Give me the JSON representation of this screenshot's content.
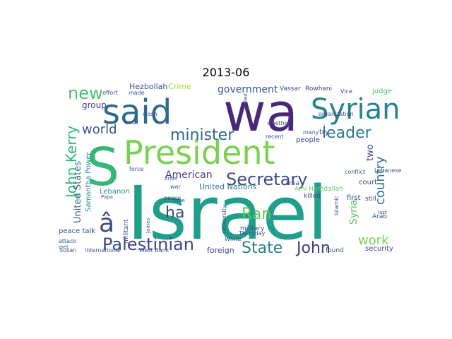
{
  "title": "2013-06",
  "words": [
    {
      "text": "Israel",
      "color": "#1f9e89"
    },
    {
      "text": "S",
      "color": "#35b779"
    },
    {
      "text": "President",
      "color": "#7ad151"
    },
    {
      "text": "wa",
      "color": "#482878"
    },
    {
      "text": "said",
      "color": "#31688e"
    },
    {
      "text": "Syrian",
      "color": "#26828e"
    },
    {
      "text": "Secretary",
      "color": "#3e4989"
    },
    {
      "text": "â",
      "color": "#3e4989"
    },
    {
      "text": "Palestinian",
      "color": "#414487"
    },
    {
      "text": "State",
      "color": "#26828e"
    },
    {
      "text": "John",
      "color": "#443983"
    },
    {
      "text": "minister",
      "color": "#31688e"
    },
    {
      "text": "new",
      "color": "#4ac16d"
    },
    {
      "text": "leader",
      "color": "#2a788e"
    },
    {
      "text": "world",
      "color": "#3b528b"
    },
    {
      "text": "John Kerry",
      "color": "#35b779"
    },
    {
      "text": "country",
      "color": "#2a788e"
    },
    {
      "text": "ha",
      "color": "#404387"
    },
    {
      "text": "Ran",
      "color": "#5ec962"
    },
    {
      "text": "work",
      "color": "#7ad151"
    },
    {
      "text": "American",
      "color": "#404387"
    },
    {
      "text": "government",
      "color": "#3b528b"
    },
    {
      "text": "Syria",
      "color": "#5ec962"
    },
    {
      "text": "United Nations",
      "color": "#2c728e"
    },
    {
      "text": "United States",
      "color": "#31688e"
    },
    {
      "text": "two",
      "color": "#3e4989"
    },
    {
      "text": "Samantha Power",
      "color": "#21918c"
    },
    {
      "text": "Hezbollah",
      "color": "#3b528b"
    },
    {
      "text": "Crime",
      "color": "#a0da39"
    },
    {
      "text": "group",
      "color": "#414487"
    },
    {
      "text": "Vassar",
      "color": "#404387"
    },
    {
      "text": "Rowhani",
      "color": "#404387"
    },
    {
      "text": "judge",
      "color": "#4ac16d"
    },
    {
      "text": "people",
      "color": "#414487"
    },
    {
      "text": "try",
      "color": "#404387"
    },
    {
      "text": "court",
      "color": "#3e4989"
    },
    {
      "text": "first",
      "color": "#404387"
    },
    {
      "text": "still",
      "color": "#3e4989"
    },
    {
      "text": "Lebanon",
      "color": "#21918c"
    },
    {
      "text": "peace talk",
      "color": "#3e4989"
    },
    {
      "text": "Ami Hamdallah",
      "color": "#5ec962"
    },
    {
      "text": "security",
      "color": "#3e4989"
    },
    {
      "text": "foreign",
      "color": "#414487"
    },
    {
      "text": "found",
      "color": "#3b528b"
    },
    {
      "text": "military",
      "color": "#3e4989"
    },
    {
      "text": "militant",
      "color": "#3b528b"
    },
    {
      "text": "Susan",
      "color": "#3b528b"
    },
    {
      "text": "international",
      "color": "#3b528b"
    },
    {
      "text": "West Bank",
      "color": "#3b528b"
    },
    {
      "text": "killed",
      "color": "#3e4989"
    },
    {
      "text": "Arab",
      "color": "#3b528b"
    },
    {
      "text": "area",
      "color": "#3e4989"
    },
    {
      "text": "attack",
      "color": "#3b528b"
    },
    {
      "text": "Thursday",
      "color": "#3b528b"
    },
    {
      "text": "recent",
      "color": "#3b528b"
    },
    {
      "text": "whether",
      "color": "#3b528b"
    },
    {
      "text": "Lebanese",
      "color": "#3b528b"
    },
    {
      "text": "force",
      "color": "#3b528b"
    },
    {
      "text": "war",
      "color": "#3b528b"
    },
    {
      "text": "peace",
      "color": "#3b528b"
    },
    {
      "text": "clash",
      "color": "#3b528b"
    },
    {
      "text": "end",
      "color": "#3b528b"
    },
    {
      "text": "effort",
      "color": "#3b528b"
    },
    {
      "text": "made",
      "color": "#3b528b"
    },
    {
      "text": "conflict",
      "color": "#3b528b"
    },
    {
      "text": "many",
      "color": "#3b528b"
    },
    {
      "text": "Vice",
      "color": "#3b528b"
    },
    {
      "text": "organization",
      "color": "#3b528b"
    },
    {
      "text": "university",
      "color": "#3b528b"
    },
    {
      "text": "White",
      "color": "#3b528b"
    },
    {
      "text": "Islamic",
      "color": "#3b528b"
    },
    {
      "text": "Papa",
      "color": "#3b528b"
    },
    {
      "text": "James",
      "color": "#3b528b"
    },
    {
      "text": "time",
      "color": "#3b528b"
    },
    {
      "text": "bride",
      "color": "#3b528b"
    },
    {
      "text": "called",
      "color": "#3b528b"
    },
    {
      "text": "last",
      "color": "#3b528b"
    },
    {
      "text": "met",
      "color": "#3b528b"
    }
  ]
}
